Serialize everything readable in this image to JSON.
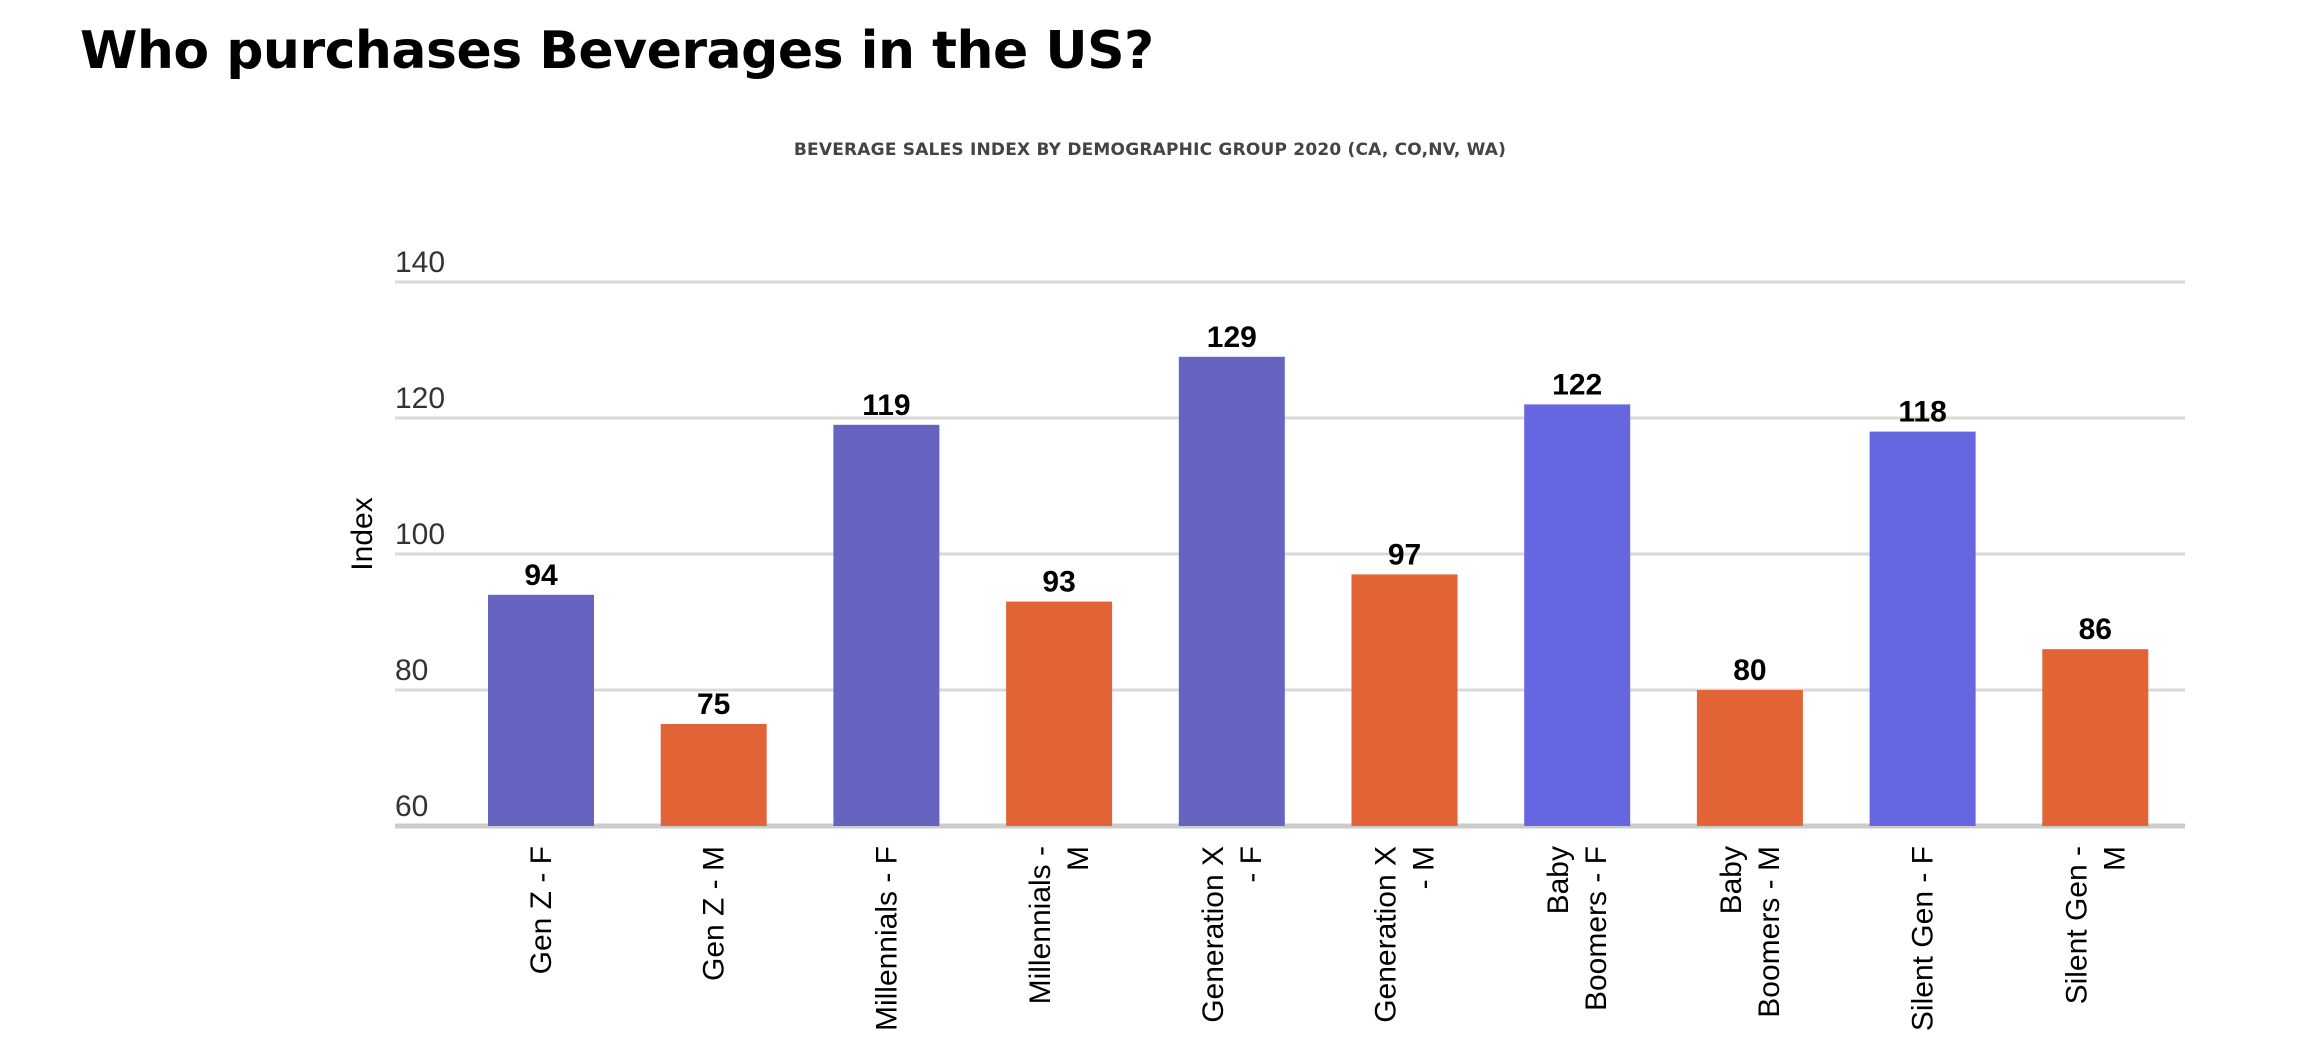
{
  "page": {
    "heading": "Who purchases Beverages in the US?"
  },
  "colors": {
    "female": "#6664c1",
    "female_alt": "#6667e0",
    "male": "#e26336",
    "grid": "#d9d9d9",
    "axis": "#cccccc",
    "text": "#000000",
    "tick_text": "#333333",
    "title_text": "#444444"
  },
  "chart_data": {
    "type": "bar",
    "title": "BEVERAGE SALES INDEX BY DEMOGRAPHIC GROUP 2020 (CA, CO,NV, WA)",
    "xlabel": "",
    "ylabel": "Index",
    "ylim": [
      60,
      140
    ],
    "yticks": [
      60,
      80,
      100,
      120,
      140
    ],
    "grid": true,
    "legend": "none",
    "categories": [
      [
        "Gen Z - F"
      ],
      [
        "Gen Z - M"
      ],
      [
        "Millennials - F"
      ],
      [
        "Millennials -",
        "M"
      ],
      [
        "Generation X",
        "- F"
      ],
      [
        "Generation X",
        "- M"
      ],
      [
        "Baby",
        "Boomers - F"
      ],
      [
        "Baby",
        "Boomers - M"
      ],
      [
        "Silent Gen - F"
      ],
      [
        "Silent Gen -",
        "M"
      ]
    ],
    "values": [
      94,
      75,
      119,
      93,
      129,
      97,
      122,
      80,
      118,
      86
    ],
    "bar_colors": [
      "#6664c1",
      "#e26336",
      "#6664c1",
      "#e26336",
      "#6664c1",
      "#e26336",
      "#6667e0",
      "#e26336",
      "#6667e0",
      "#e26336"
    ],
    "data_labels": true
  }
}
